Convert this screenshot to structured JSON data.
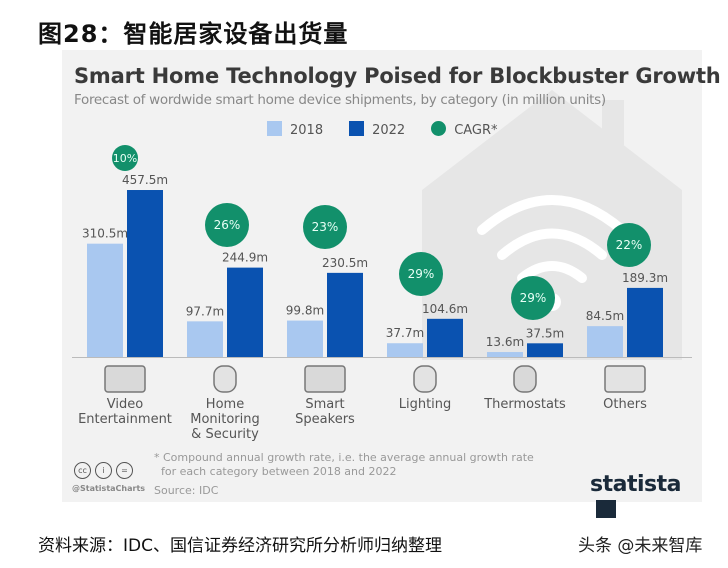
{
  "figure_title": "图28：智能居家设备出货量",
  "source_line": "资料来源：IDC、国信证券经济研究所分析师归纳整理",
  "watermark": "头条 @未来智库",
  "colors": {
    "y2018": "#a9c8f0",
    "y2022": "#0a52b0",
    "cagr": "#12906b",
    "panel": "#f2f2f2"
  },
  "chart_data": {
    "type": "bar",
    "title": "Smart Home Technology Poised for Blockbuster Growth",
    "subtitle": "Forecast of wordwide smart home device shipments, by category (in million units)",
    "legend": [
      "2018",
      "2022",
      "CAGR*"
    ],
    "legend_placement": "top-center",
    "categories": [
      "Video Entertainment",
      "Home Monitoring & Security",
      "Smart Speakers",
      "Lighting",
      "Thermostats",
      "Others"
    ],
    "category_lines": [
      [
        "Video",
        "Entertainment"
      ],
      [
        "Home",
        "Monitoring",
        "& Security"
      ],
      [
        "Smart",
        "Speakers"
      ],
      [
        "Lighting"
      ],
      [
        "Thermostats"
      ],
      [
        "Others"
      ]
    ],
    "category_icons": [
      "tv-icon",
      "shield-lock-icon",
      "speaker-icon",
      "lightbulb-icon",
      "thermometer-icon",
      "appliance-icon"
    ],
    "series": [
      {
        "name": "2018",
        "values": [
          310.5,
          97.7,
          99.8,
          37.7,
          13.6,
          84.5
        ],
        "labels": [
          "310.5m",
          "97.7m",
          "99.8m",
          "37.7m",
          "13.6m",
          "84.5m"
        ]
      },
      {
        "name": "2022",
        "values": [
          457.5,
          244.9,
          230.5,
          104.6,
          37.5,
          189.3
        ],
        "labels": [
          "457.5m",
          "244.9m",
          "230.5m",
          "104.6m",
          "37.5m",
          "189.3m"
        ]
      }
    ],
    "cagr": [
      "10%",
      "26%",
      "23%",
      "29%",
      "29%",
      "22%"
    ],
    "footnote": [
      "* Compound annual growth rate, i.e. the average annual growth rate",
      "for each category between 2018 and 2022"
    ],
    "source": "Source: IDC",
    "handle": "@StatistaCharts",
    "brand": "statista",
    "grid": false
  }
}
